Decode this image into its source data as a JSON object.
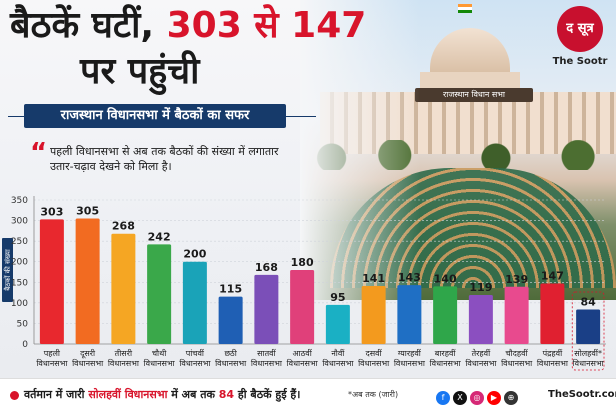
{
  "header": {
    "title_part1": "बैठकें घटीं, ",
    "title_numbers": "303 से 147",
    "title_line2": "पर पहुंची"
  },
  "banner": "राजस्थान विधानसभा में बैठकों का सफर",
  "building_plaque": "राजस्थान विधान सभा",
  "logo": {
    "mark": "द सूत्र",
    "name": "The Sootr"
  },
  "quote": "पहली विधानसभा से अब तक बैठकों की संख्या में लगातार उतार-चढ़ाव देखने को मिला है।",
  "colors": {
    "accent": "#d8142b",
    "navy": "#163a6a"
  },
  "chart_data": {
    "type": "bar",
    "ylabel": "बैठकों की संख्या",
    "ylim": [
      0,
      350
    ],
    "yticks": [
      0,
      50,
      100,
      150,
      200,
      250,
      300,
      350
    ],
    "categories": [
      {
        "line1": "पहली",
        "line2": "विधानसभा"
      },
      {
        "line1": "दूसरी",
        "line2": "विधानसभा"
      },
      {
        "line1": "तीसरी",
        "line2": "विधानसभा"
      },
      {
        "line1": "चौथी",
        "line2": "विधानसभा"
      },
      {
        "line1": "पांचवीं",
        "line2": "विधानसभा"
      },
      {
        "line1": "छठी",
        "line2": "विधानसभा"
      },
      {
        "line1": "सातवीं",
        "line2": "विधानसभा"
      },
      {
        "line1": "आठवीं",
        "line2": "विधानसभा"
      },
      {
        "line1": "नौवीं",
        "line2": "विधानसभा"
      },
      {
        "line1": "दसवीं",
        "line2": "विधानसभा"
      },
      {
        "line1": "ग्यारहवीं",
        "line2": "विधानसभा"
      },
      {
        "line1": "बारहवीं",
        "line2": "विधानसभा"
      },
      {
        "line1": "तेरहवीं",
        "line2": "विधानसभा"
      },
      {
        "line1": "चौदहवीं",
        "line2": "विधानसभा"
      },
      {
        "line1": "पंद्रहवीं",
        "line2": "विधानसभा"
      },
      {
        "line1": "सोलहवीं*",
        "line2": "विधानसभा"
      }
    ],
    "values": [
      303,
      305,
      268,
      242,
      200,
      115,
      168,
      180,
      95,
      141,
      143,
      140,
      119,
      139,
      147,
      84
    ],
    "colors": [
      "#e8282e",
      "#f26b21",
      "#f5a623",
      "#3aa84a",
      "#1aa3b8",
      "#1f5fb4",
      "#7b4fb8",
      "#e0407a",
      "#1ab0c4",
      "#f39a1e",
      "#1f6fc4",
      "#2fa64a",
      "#8b4fc0",
      "#e84a8e",
      "#e02030",
      "#1a3f86"
    ],
    "highlight_index": 15
  },
  "footer": {
    "text_pre": "वर्तमान में जारी ",
    "text_red1": "सोलहवीं विधानसभा",
    "text_mid": " में अब तक ",
    "text_red2": "84",
    "text_post": " ही बैठकें हुई हैं।",
    "note": "*अब तक (जारी)",
    "site": "TheSootr.com",
    "social_icons": [
      "facebook-icon",
      "x-icon",
      "instagram-icon",
      "youtube-icon",
      "globe-icon"
    ]
  }
}
